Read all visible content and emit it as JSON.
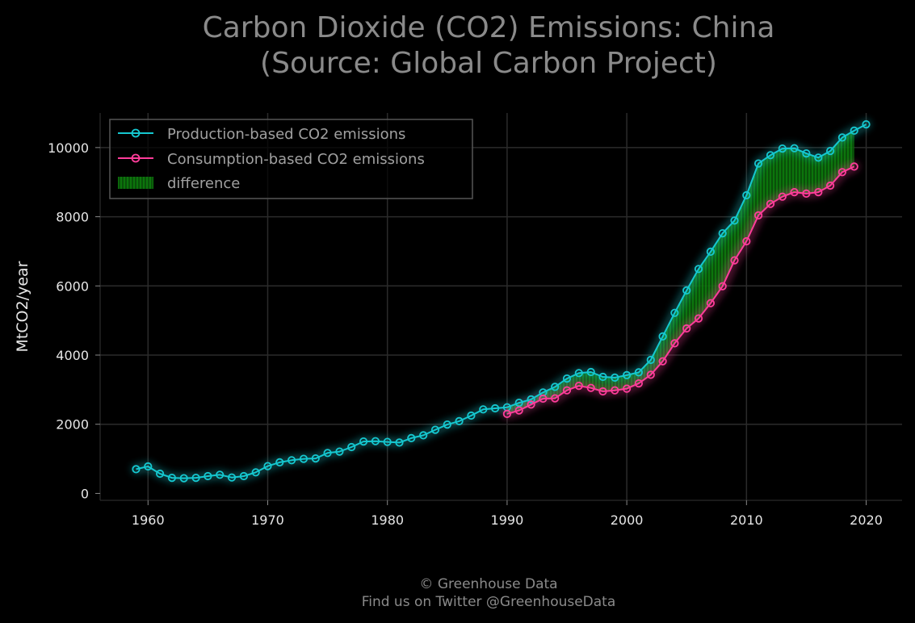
{
  "chart_data": {
    "type": "line",
    "title_line1": "Carbon Dioxide (CO2) Emissions: China",
    "title_line2": "(Source: Global Carbon Project)",
    "xlabel": "",
    "ylabel": "MtCO2/year",
    "xlim": [
      1956,
      2023
    ],
    "ylim": [
      -200,
      11000
    ],
    "x_ticks": [
      1960,
      1970,
      1980,
      1990,
      2000,
      2010,
      2020
    ],
    "y_ticks": [
      0,
      2000,
      4000,
      6000,
      8000,
      10000
    ],
    "grid": true,
    "legend_position": "top-left",
    "fill_between": {
      "name": "difference",
      "color": "#0a8a0a",
      "between": [
        "Production-based CO2 emissions",
        "Consumption-based CO2 emissions"
      ]
    },
    "series": [
      {
        "name": "Production-based CO2 emissions",
        "color": "#15c8d0",
        "x": [
          1959,
          1960,
          1961,
          1962,
          1963,
          1964,
          1965,
          1966,
          1967,
          1968,
          1969,
          1970,
          1971,
          1972,
          1973,
          1974,
          1975,
          1976,
          1977,
          1978,
          1979,
          1980,
          1981,
          1982,
          1983,
          1984,
          1985,
          1986,
          1987,
          1988,
          1989,
          1990,
          1991,
          1992,
          1993,
          1994,
          1995,
          1996,
          1997,
          1998,
          1999,
          2000,
          2001,
          2002,
          2003,
          2004,
          2005,
          2006,
          2007,
          2008,
          2009,
          2010,
          2011,
          2012,
          2013,
          2014,
          2015,
          2016,
          2017,
          2018,
          2019,
          2020
        ],
        "values": [
          700,
          780,
          570,
          450,
          440,
          450,
          500,
          540,
          460,
          500,
          610,
          790,
          900,
          960,
          1000,
          1010,
          1170,
          1210,
          1340,
          1500,
          1510,
          1490,
          1470,
          1600,
          1680,
          1840,
          1990,
          2090,
          2250,
          2430,
          2460,
          2490,
          2620,
          2720,
          2920,
          3080,
          3320,
          3480,
          3510,
          3370,
          3350,
          3420,
          3500,
          3860,
          4540,
          5220,
          5870,
          6490,
          6990,
          7520,
          7890,
          8620,
          9540,
          9780,
          9970,
          9980,
          9830,
          9710,
          9900,
          10290,
          10490,
          10670
        ]
      },
      {
        "name": "Consumption-based CO2 emissions",
        "color": "#ff3d9a",
        "x": [
          1990,
          1991,
          1992,
          1993,
          1994,
          1995,
          1996,
          1997,
          1998,
          1999,
          2000,
          2001,
          2002,
          2003,
          2004,
          2005,
          2006,
          2007,
          2008,
          2009,
          2010,
          2011,
          2012,
          2013,
          2014,
          2015,
          2016,
          2017,
          2018,
          2019
        ],
        "values": [
          2300,
          2400,
          2570,
          2740,
          2750,
          2980,
          3110,
          3050,
          2950,
          2980,
          3030,
          3180,
          3430,
          3820,
          4340,
          4770,
          5060,
          5500,
          5990,
          6740,
          7290,
          8040,
          8370,
          8580,
          8710,
          8670,
          8710,
          8900,
          9290,
          9450
        ]
      }
    ]
  },
  "footer": {
    "line1": "© Greenhouse Data",
    "line2": "Find us on Twitter @GreenhouseData"
  }
}
